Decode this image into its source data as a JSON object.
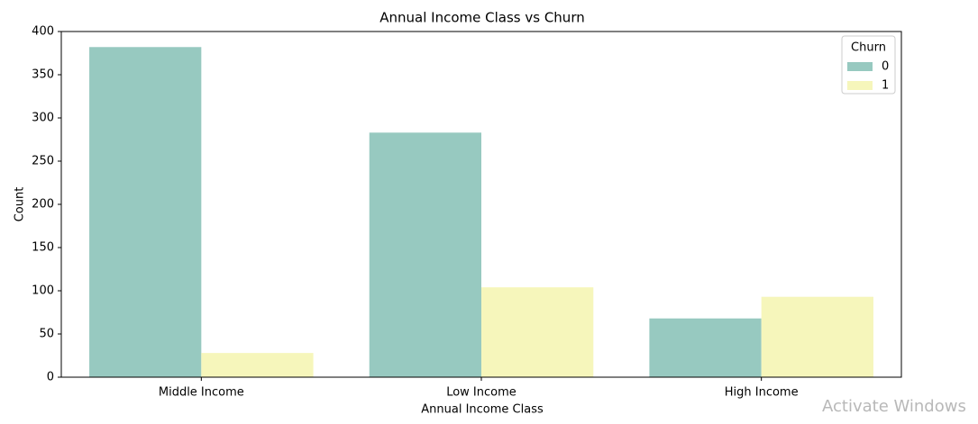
{
  "chart_data": {
    "type": "bar",
    "title": "Annual Income Class vs Churn",
    "x_label": "Annual Income Class",
    "y_label": "Count",
    "categories": [
      "Middle Income",
      "Low Income",
      "High Income"
    ],
    "series": [
      {
        "name": "0",
        "color": "#97c9c0",
        "values": [
          382,
          283,
          68
        ]
      },
      {
        "name": "1",
        "color": "#f6f6bb",
        "values": [
          28,
          104,
          93
        ]
      }
    ],
    "ylim": [
      0,
      400
    ],
    "yticks": [
      0,
      50,
      100,
      150,
      200,
      250,
      300,
      350,
      400
    ],
    "legend_title": "Churn",
    "legend": "upper right",
    "grid": false
  },
  "watermark": "Activate Windows"
}
